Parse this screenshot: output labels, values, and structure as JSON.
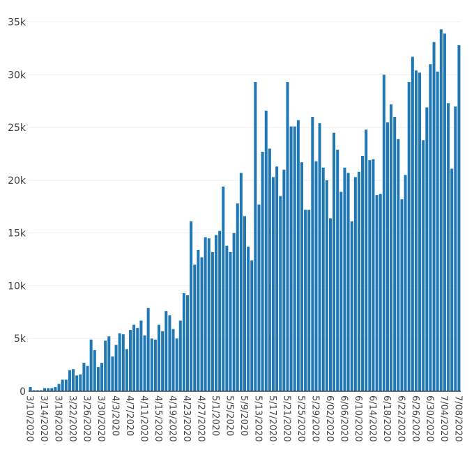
{
  "chart_data": {
    "type": "bar",
    "title": "",
    "xlabel": "",
    "ylabel": "",
    "ylim": [
      0,
      35500
    ],
    "yticks": [
      0,
      5000,
      10000,
      15000,
      20000,
      25000,
      30000,
      35000
    ],
    "ytick_labels": [
      "0",
      "5k",
      "10k",
      "15k",
      "20k",
      "25k",
      "30k",
      "35k"
    ],
    "xtick_labels": [
      "3/10/2020",
      "3/14/2020",
      "3/18/2020",
      "3/22/2020",
      "3/26/2020",
      "3/30/2020",
      "4/3/2020",
      "4/7/2020",
      "4/11/2020",
      "4/15/2020",
      "4/19/2020",
      "4/23/2020",
      "4/27/2020",
      "5/1/2020",
      "5/5/2020",
      "5/9/2020",
      "5/13/2020",
      "5/17/2020",
      "5/21/2020",
      "5/25/2020",
      "5/29/2020",
      "6/02/2020",
      "6/06/2020",
      "6/10/2020",
      "6/14/2020",
      "6/18/2020",
      "6/22/2020",
      "6/26/2020",
      "6/30/2020",
      "7/04/2020",
      "7/08/2020"
    ],
    "bar_color": "#1f77b4",
    "grid": true,
    "categories": [
      "3/10/2020",
      "3/11/2020",
      "3/12/2020",
      "3/13/2020",
      "3/14/2020",
      "3/15/2020",
      "3/16/2020",
      "3/17/2020",
      "3/18/2020",
      "3/19/2020",
      "3/20/2020",
      "3/21/2020",
      "3/22/2020",
      "3/23/2020",
      "3/24/2020",
      "3/25/2020",
      "3/26/2020",
      "3/27/2020",
      "3/28/2020",
      "3/29/2020",
      "3/30/2020",
      "3/31/2020",
      "4/1/2020",
      "4/2/2020",
      "4/3/2020",
      "4/4/2020",
      "4/5/2020",
      "4/6/2020",
      "4/7/2020",
      "4/8/2020",
      "4/9/2020",
      "4/10/2020",
      "4/11/2020",
      "4/12/2020",
      "4/13/2020",
      "4/14/2020",
      "4/15/2020",
      "4/16/2020",
      "4/17/2020",
      "4/18/2020",
      "4/19/2020",
      "4/20/2020",
      "4/21/2020",
      "4/22/2020",
      "4/23/2020",
      "4/24/2020",
      "4/25/2020",
      "4/26/2020",
      "4/27/2020",
      "4/28/2020",
      "4/29/2020",
      "4/30/2020",
      "5/1/2020",
      "5/2/2020",
      "5/3/2020",
      "5/4/2020",
      "5/5/2020",
      "5/6/2020",
      "5/7/2020",
      "5/8/2020",
      "5/9/2020",
      "5/10/2020",
      "5/11/2020",
      "5/12/2020",
      "5/13/2020",
      "5/14/2020",
      "5/15/2020",
      "5/16/2020",
      "5/17/2020",
      "5/18/2020",
      "5/19/2020",
      "5/20/2020",
      "5/21/2020",
      "5/22/2020",
      "5/23/2020",
      "5/24/2020",
      "5/25/2020",
      "5/26/2020",
      "5/27/2020",
      "5/28/2020",
      "5/29/2020",
      "5/30/2020",
      "5/31/2020",
      "6/01/2020",
      "6/02/2020",
      "6/03/2020",
      "6/04/2020",
      "6/05/2020",
      "6/06/2020",
      "6/07/2020",
      "6/08/2020",
      "6/09/2020",
      "6/10/2020",
      "6/11/2020",
      "6/12/2020",
      "6/13/2020",
      "6/14/2020",
      "6/15/2020",
      "6/16/2020",
      "6/17/2020",
      "6/18/2020",
      "6/19/2020",
      "6/20/2020",
      "6/21/2020",
      "6/22/2020",
      "6/23/2020",
      "6/24/2020",
      "6/25/2020",
      "6/26/2020",
      "6/27/2020",
      "6/28/2020",
      "6/29/2020",
      "6/30/2020",
      "7/01/2020",
      "7/02/2020",
      "7/03/2020",
      "7/04/2020",
      "7/05/2020",
      "7/06/2020",
      "7/07/2020",
      "7/08/2020"
    ],
    "values": [
      400,
      100,
      100,
      100,
      300,
      300,
      300,
      400,
      700,
      1100,
      1100,
      2000,
      2100,
      1500,
      1600,
      2700,
      2400,
      4900,
      3900,
      2300,
      2700,
      4800,
      5200,
      3300,
      4400,
      5500,
      5400,
      4000,
      5800,
      6300,
      6000,
      6700,
      5300,
      7900,
      5000,
      4900,
      6300,
      5700,
      7600,
      7200,
      5900,
      5000,
      6700,
      9300,
      9100,
      16100,
      12000,
      13400,
      12700,
      14600,
      14500,
      13200,
      14800,
      15200,
      19400,
      13800,
      13200,
      15000,
      17800,
      20700,
      16600,
      13700,
      12400,
      29300,
      17700,
      22700,
      26600,
      23000,
      20300,
      21300,
      18500,
      21000,
      29300,
      25100,
      25100,
      25700,
      21700,
      17200,
      17200,
      26000,
      21800,
      25400,
      21200,
      20000,
      16400,
      24500,
      22900,
      18900,
      21200,
      20700,
      16100,
      20300,
      20800,
      22300,
      24800,
      21900,
      22000,
      18600,
      18700,
      30000,
      25500,
      27200,
      26000,
      23900,
      18200,
      20500,
      29300,
      31700,
      30400,
      30200,
      23800,
      26900,
      31000,
      33100,
      30300,
      34300,
      33900,
      27300,
      21100,
      27000,
      32800
    ]
  }
}
